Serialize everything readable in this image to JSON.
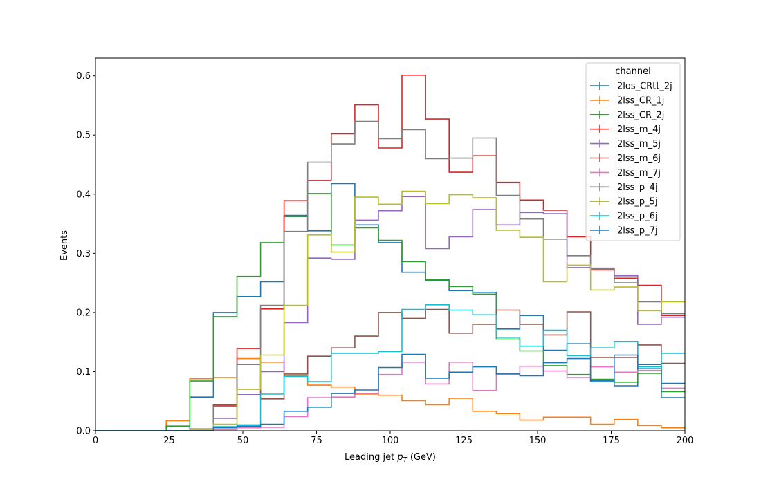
{
  "chart_data": {
    "type": "line",
    "title": "",
    "xlabel_prefix": "Leading jet  ",
    "xlabel_symbol": "p",
    "xlabel_subscript": "T",
    "xlabel_suffix": " (GeV)",
    "ylabel": "Events",
    "xlim": [
      0,
      200
    ],
    "ylim": [
      0,
      0.63
    ],
    "xticks": [
      "0",
      "25",
      "50",
      "75",
      "100",
      "125",
      "150",
      "175",
      "200"
    ],
    "yticks": [
      "0.0",
      "0.1",
      "0.2",
      "0.3",
      "0.4",
      "0.5",
      "0.6"
    ],
    "grid": false,
    "legend_title": "channel",
    "legend_position": "top-right",
    "bin_edges": [
      0,
      8,
      16,
      24,
      32,
      40,
      48,
      56,
      64,
      72,
      80,
      88,
      96,
      104,
      112,
      120,
      128,
      136,
      144,
      152,
      160,
      168,
      176,
      184,
      192,
      200
    ],
    "series": [
      {
        "name": "2los_CRtt_2j",
        "color": "#1f77b4",
        "values": [
          0,
          0,
          0,
          0,
          0.057,
          0.2,
          0.227,
          0.252,
          0.364,
          0.338,
          0.418,
          0.348,
          0.318,
          0.268,
          0.254,
          0.237,
          0.234,
          0.172,
          0.195,
          0.136,
          0.147,
          0.085,
          0.076,
          0.112,
          0.08
        ]
      },
      {
        "name": "2lss_CR_1j",
        "color": "#ff7f0e",
        "values": [
          0,
          0,
          0,
          0.017,
          0.088,
          0.09,
          0.122,
          0.116,
          0.093,
          0.077,
          0.074,
          0.062,
          0.06,
          0.051,
          0.044,
          0.055,
          0.033,
          0.029,
          0.018,
          0.023,
          0.023,
          0.011,
          0.019,
          0.009,
          0.005
        ]
      },
      {
        "name": "2lss_CR_2j",
        "color": "#2ca02c",
        "values": [
          0,
          0,
          0,
          0.008,
          0.084,
          0.193,
          0.261,
          0.318,
          0.362,
          0.401,
          0.314,
          0.343,
          0.322,
          0.286,
          0.255,
          0.244,
          0.231,
          0.155,
          0.135,
          0.11,
          0.095,
          0.087,
          0.082,
          0.097,
          0.066
        ]
      },
      {
        "name": "2lss_m_4j",
        "color": "#d62728",
        "values": [
          0,
          0,
          0,
          0,
          0.003,
          0.042,
          0.139,
          0.206,
          0.389,
          0.423,
          0.502,
          0.551,
          0.478,
          0.601,
          0.527,
          0.437,
          0.465,
          0.42,
          0.39,
          0.373,
          0.328,
          0.272,
          0.258,
          0.246,
          0.195
        ]
      },
      {
        "name": "2lss_m_5j",
        "color": "#9467bd",
        "values": [
          0,
          0,
          0,
          0,
          0.002,
          0.021,
          0.061,
          0.1,
          0.183,
          0.292,
          0.29,
          0.356,
          0.372,
          0.396,
          0.308,
          0.328,
          0.374,
          0.348,
          0.369,
          0.367,
          0.276,
          0.275,
          0.262,
          0.18,
          0.192
        ]
      },
      {
        "name": "2lss_m_6j",
        "color": "#8c564b",
        "values": [
          0,
          0,
          0,
          0,
          0.003,
          0.044,
          0.112,
          0.054,
          0.096,
          0.126,
          0.14,
          0.16,
          0.2,
          0.19,
          0.205,
          0.165,
          0.18,
          0.204,
          0.18,
          0.162,
          0.201,
          0.124,
          0.124,
          0.145,
          0.114
        ]
      },
      {
        "name": "2lss_m_7j",
        "color": "#e377c2",
        "values": [
          0,
          0,
          0,
          0,
          0,
          0.002,
          0.005,
          0.006,
          0.024,
          0.056,
          0.057,
          0.063,
          0.095,
          0.116,
          0.079,
          0.116,
          0.068,
          0.097,
          0.109,
          0.101,
          0.09,
          0.108,
          0.099,
          0.102,
          0.072
        ]
      },
      {
        "name": "2lss_p_4j",
        "color": "#7f7f7f",
        "values": [
          0,
          0,
          0,
          0,
          0.002,
          0.041,
          0.112,
          0.212,
          0.337,
          0.454,
          0.485,
          0.523,
          0.494,
          0.509,
          0.46,
          0.461,
          0.495,
          0.398,
          0.358,
          0.324,
          0.296,
          0.274,
          0.25,
          0.218,
          0.198
        ]
      },
      {
        "name": "2lss_p_5j",
        "color": "#bcbd22",
        "values": [
          0,
          0,
          0,
          0,
          0.002,
          0.011,
          0.07,
          0.128,
          0.212,
          0.331,
          0.302,
          0.395,
          0.383,
          0.405,
          0.384,
          0.399,
          0.394,
          0.339,
          0.327,
          0.252,
          0.28,
          0.238,
          0.243,
          0.203,
          0.218
        ]
      },
      {
        "name": "2lss_p_6j",
        "color": "#17becf",
        "values": [
          0,
          0,
          0,
          0,
          0,
          0.007,
          0.01,
          0.062,
          0.092,
          0.083,
          0.131,
          0.131,
          0.134,
          0.205,
          0.213,
          0.204,
          0.196,
          0.158,
          0.143,
          0.17,
          0.127,
          0.14,
          0.151,
          0.108,
          0.131
        ]
      },
      {
        "name": "2lss_p_7j",
        "color": "#1f77b4",
        "values": [
          0,
          0,
          0,
          0,
          0,
          0.005,
          0.008,
          0.011,
          0.033,
          0.04,
          0.063,
          0.069,
          0.107,
          0.129,
          0.089,
          0.099,
          0.108,
          0.096,
          0.093,
          0.115,
          0.122,
          0.083,
          0.128,
          0.105,
          0.056
        ]
      }
    ]
  }
}
